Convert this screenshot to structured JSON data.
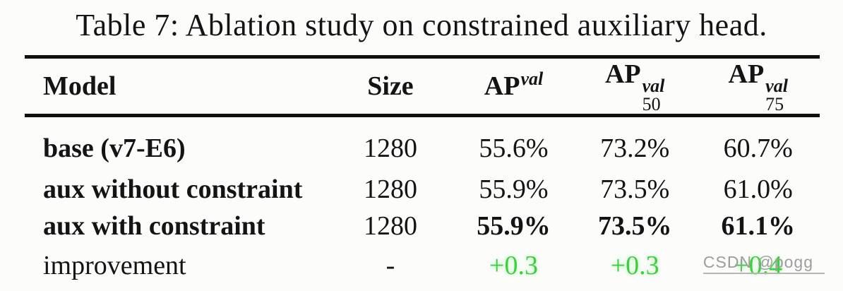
{
  "title": "Table 7: Ablation study on constrained auxiliary head.",
  "watermark": "CSDN @pogg",
  "colors": {
    "background": "#fcfcfb",
    "text": "#141414",
    "rule": "#101010",
    "improvement_green": "#3ecf3e",
    "watermark_gray": "#9d9d9d"
  },
  "chart_data": {
    "type": "table",
    "title": "Table 7: Ablation study on constrained auxiliary head.",
    "columns": [
      "Model",
      "Size",
      "AP^val",
      "AP^val_50",
      "AP^val_75"
    ],
    "rows": [
      [
        "base (v7-E6)",
        "1280",
        "55.6%",
        "73.2%",
        "60.7%"
      ],
      [
        "aux without constraint",
        "1280",
        "55.9%",
        "73.5%",
        "61.0%"
      ],
      [
        "aux with constraint",
        "1280",
        "55.9%",
        "73.5%",
        "61.1%"
      ],
      [
        "improvement",
        "-",
        "+0.3",
        "+0.3",
        "+0.4"
      ]
    ]
  },
  "table": {
    "headers": {
      "model": "Model",
      "size": "Size",
      "ap": {
        "base": "AP",
        "sup": "val"
      },
      "ap50": {
        "base": "AP",
        "sup": "val",
        "sub": "50"
      },
      "ap75": {
        "base": "AP",
        "sup": "val",
        "sub": "75"
      }
    },
    "rows": [
      {
        "model": "base (v7-E6)",
        "size": "1280",
        "ap": "55.6%",
        "ap50": "73.2%",
        "ap75": "60.7%"
      },
      {
        "model": "aux without constraint",
        "size": "1280",
        "ap": "55.9%",
        "ap50": "73.5%",
        "ap75": "61.0%"
      },
      {
        "model": "aux with constraint",
        "size": "1280",
        "ap": "55.9%",
        "ap50": "73.5%",
        "ap75": "61.1%"
      },
      {
        "model": "improvement",
        "size": "-",
        "ap": "+0.3",
        "ap50": "+0.3",
        "ap75": "+0.4"
      }
    ]
  }
}
